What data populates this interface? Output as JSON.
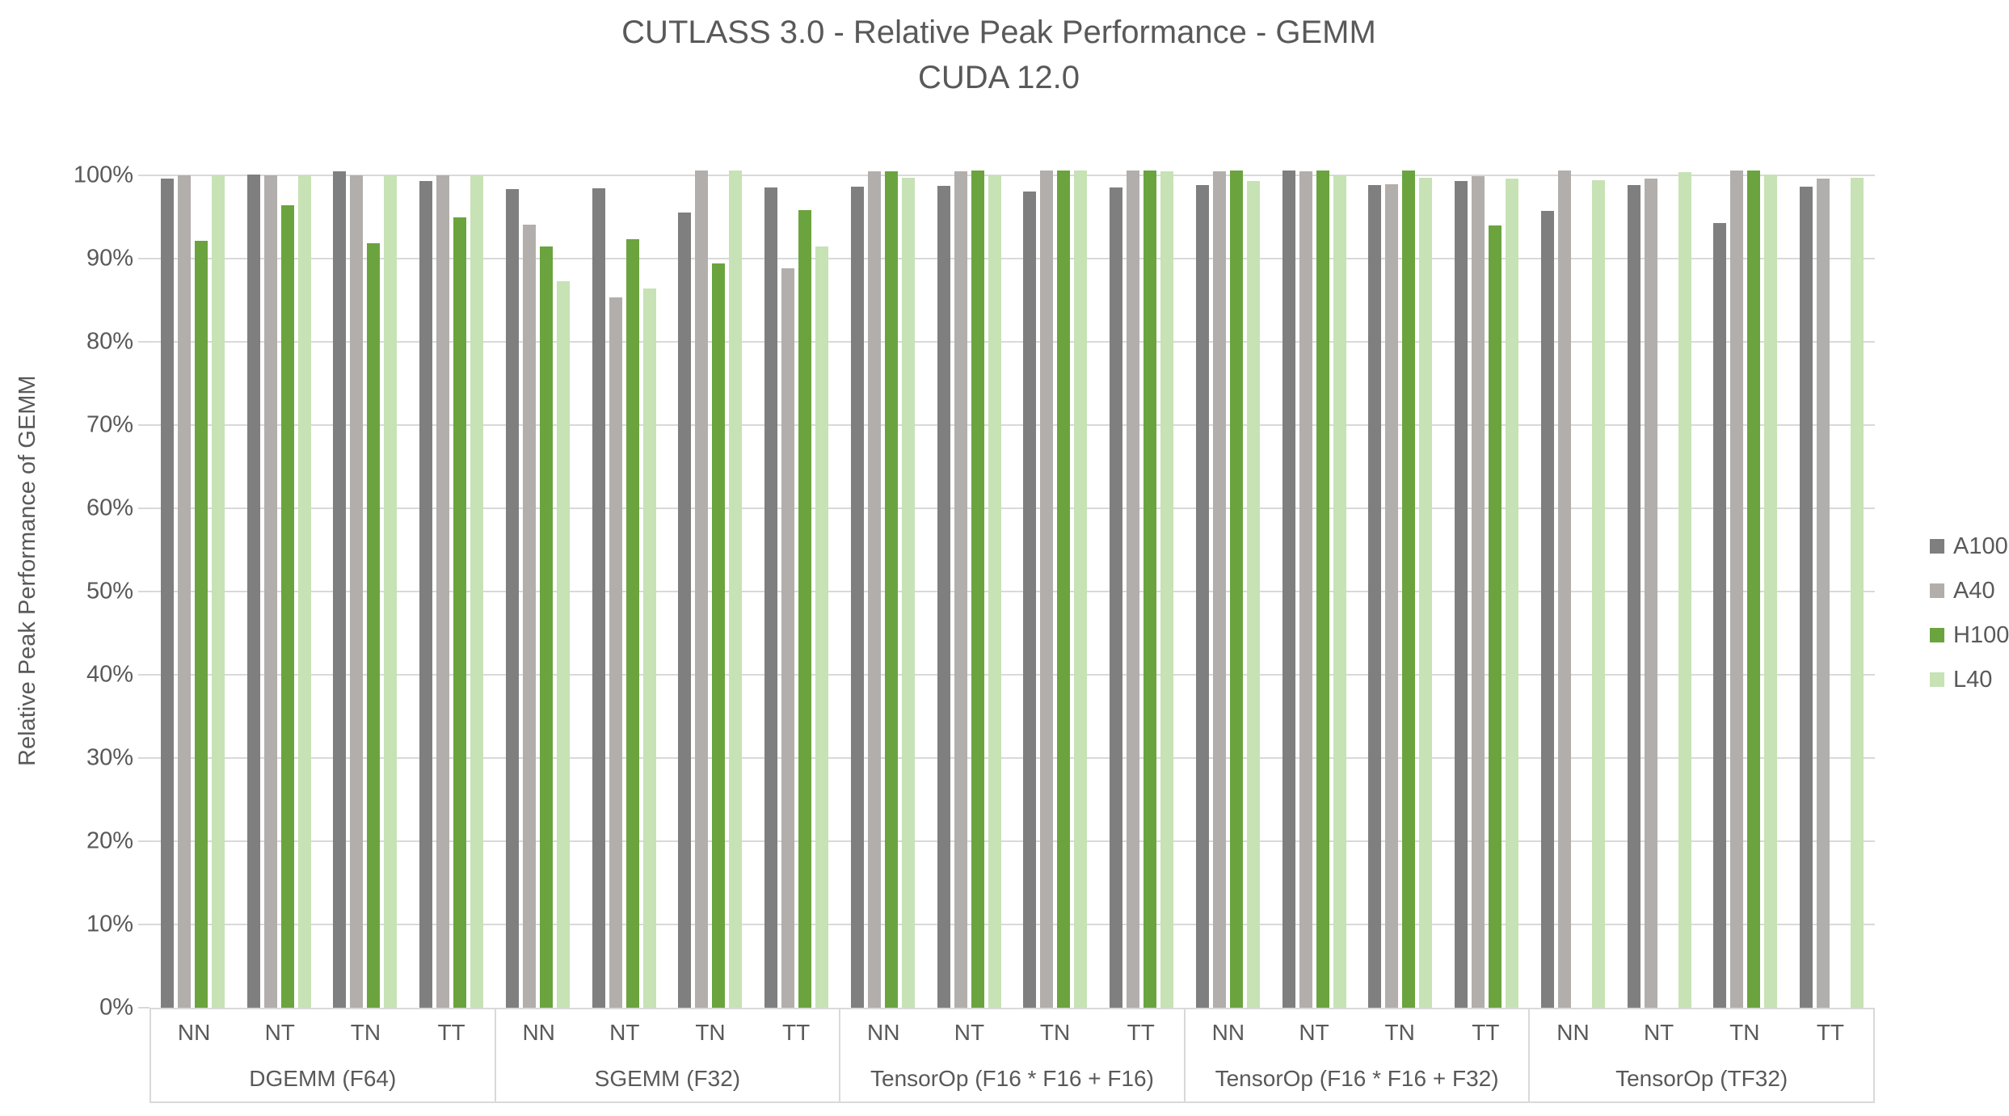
{
  "chart_data": {
    "type": "bar",
    "title": "CUTLASS 3.0 - Relative Peak Performance - GEMM",
    "subtitle": "CUDA 12.0",
    "xlabel": "",
    "ylabel": "Relative Peak Performance of GEMM",
    "ylim": [
      0,
      105
    ],
    "grid": true,
    "legend_position": "right",
    "yticks": [
      "0%",
      "10%",
      "20%",
      "30%",
      "40%",
      "50%",
      "60%",
      "70%",
      "80%",
      "90%",
      "100%"
    ],
    "colors": {
      "text": "#595959",
      "gridline": "#d9d9d9",
      "axis_border": "#d9d9d9",
      "background": "#ffffff"
    },
    "series": [
      {
        "name": "A100",
        "color": "#7f7f7f"
      },
      {
        "name": "A40",
        "color": "#b2aeac"
      },
      {
        "name": "H100",
        "color": "#6ba43e"
      },
      {
        "name": "L40",
        "color": "#c7e2b5"
      }
    ],
    "groups": [
      {
        "label": "DGEMM (F64)",
        "clusters": [
          {
            "label": "NN",
            "values": [
              99.6,
              100.0,
              92.1,
              100.0
            ]
          },
          {
            "label": "NT",
            "values": [
              100.1,
              100.0,
              96.4,
              100.0
            ]
          },
          {
            "label": "TN",
            "values": [
              100.4,
              100.0,
              91.8,
              100.0
            ]
          },
          {
            "label": "TT",
            "values": [
              99.3,
              100.0,
              94.9,
              100.0
            ]
          }
        ]
      },
      {
        "label": "SGEMM (F32)",
        "clusters": [
          {
            "label": "NN",
            "values": [
              98.3,
              94.0,
              91.4,
              87.2
            ]
          },
          {
            "label": "NT",
            "values": [
              98.4,
              85.3,
              92.3,
              86.4
            ]
          },
          {
            "label": "TN",
            "values": [
              95.5,
              100.5,
              89.4,
              100.5
            ]
          },
          {
            "label": "TT",
            "values": [
              98.5,
              88.8,
              95.8,
              91.4
            ]
          }
        ]
      },
      {
        "label": "TensorOp (F16 * F16 + F16)",
        "clusters": [
          {
            "label": "NN",
            "values": [
              98.6,
              100.4,
              100.4,
              99.7
            ]
          },
          {
            "label": "NT",
            "values": [
              98.7,
              100.4,
              100.5,
              100.0
            ]
          },
          {
            "label": "TN",
            "values": [
              98.0,
              100.5,
              100.5,
              100.5
            ]
          },
          {
            "label": "TT",
            "values": [
              98.5,
              100.5,
              100.5,
              100.4
            ]
          }
        ]
      },
      {
        "label": "TensorOp (F16 * F16 + F32)",
        "clusters": [
          {
            "label": "NN",
            "values": [
              98.8,
              100.4,
              100.5,
              99.3
            ]
          },
          {
            "label": "NT",
            "values": [
              100.5,
              100.4,
              100.5,
              100.0
            ]
          },
          {
            "label": "TN",
            "values": [
              98.8,
              98.9,
              100.5,
              99.7
            ]
          },
          {
            "label": "TT",
            "values": [
              99.3,
              99.9,
              93.9,
              99.6
            ]
          }
        ]
      },
      {
        "label": "TensorOp (TF32)",
        "clusters": [
          {
            "label": "NN",
            "values": [
              95.7,
              100.5,
              null,
              99.4
            ]
          },
          {
            "label": "NT",
            "values": [
              98.8,
              99.6,
              null,
              100.3
            ]
          },
          {
            "label": "TN",
            "values": [
              94.2,
              100.5,
              100.5,
              100.1
            ]
          },
          {
            "label": "TT",
            "values": [
              98.6,
              99.6,
              null,
              99.7
            ]
          }
        ]
      }
    ]
  }
}
